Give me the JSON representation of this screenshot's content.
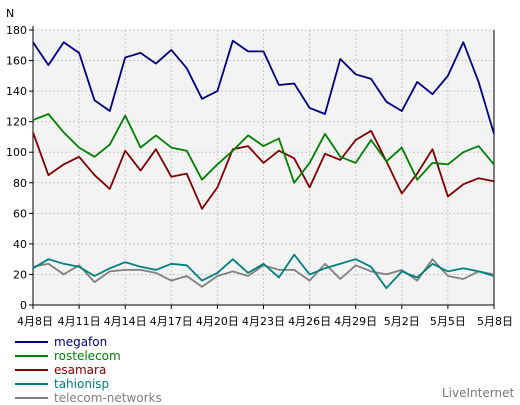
{
  "chart_data": {
    "type": "line",
    "title": "",
    "xlabel": "",
    "ylabel": "N",
    "ylim": [
      0,
      180
    ],
    "yticks": [
      0,
      20,
      40,
      60,
      80,
      100,
      120,
      140,
      160,
      180
    ],
    "grid": true,
    "legend_position": "bottom-left",
    "brand": "LiveInternet",
    "x": [
      "4月8日",
      "4月9日",
      "4月10日",
      "4月11日",
      "4月12日",
      "4月13日",
      "4月14日",
      "4月15日",
      "4月16日",
      "4月17日",
      "4月18日",
      "4月19日",
      "4月20日",
      "4月21日",
      "4月22日",
      "4月23日",
      "4月24日",
      "4月25日",
      "4月26日",
      "4月27日",
      "4月28日",
      "4月29日",
      "4月30日",
      "5月1日",
      "5月2日",
      "5月3日",
      "5月4日",
      "5月5日",
      "5月6日",
      "5月7日",
      "5月8日"
    ],
    "xticks": [
      {
        "label": "4月8日",
        "index": 0
      },
      {
        "label": "4月11日",
        "index": 3
      },
      {
        "label": "4月14日",
        "index": 6
      },
      {
        "label": "4月17日",
        "index": 9
      },
      {
        "label": "4月20日",
        "index": 12
      },
      {
        "label": "4月23日",
        "index": 15
      },
      {
        "label": "4月26日",
        "index": 18
      },
      {
        "label": "4月29日",
        "index": 21
      },
      {
        "label": "5月2日",
        "index": 24
      },
      {
        "label": "5月5日",
        "index": 27
      },
      {
        "label": "5月8日",
        "index": 30
      }
    ],
    "series": [
      {
        "name": "megafon",
        "color": "#000080",
        "values": [
          172,
          157,
          172,
          165,
          134,
          127,
          162,
          165,
          158,
          167,
          155,
          135,
          140,
          173,
          166,
          166,
          144,
          145,
          129,
          125,
          161,
          151,
          148,
          133,
          127,
          146,
          138,
          150,
          172,
          146,
          112
        ]
      },
      {
        "name": "rostelecom",
        "color": "#008000",
        "values": [
          121,
          125,
          113,
          103,
          97,
          105,
          124,
          103,
          111,
          103,
          101,
          82,
          92,
          101,
          111,
          104,
          109,
          80,
          93,
          112,
          97,
          93,
          108,
          94,
          103,
          82,
          93,
          92,
          100,
          104,
          92
        ]
      },
      {
        "name": "esamara",
        "color": "#800000",
        "values": [
          113,
          85,
          92,
          97,
          85,
          76,
          101,
          88,
          102,
          84,
          86,
          63,
          77,
          102,
          104,
          93,
          101,
          96,
          77,
          99,
          95,
          108,
          114,
          94,
          73,
          86,
          102,
          71,
          79,
          83,
          81
        ]
      },
      {
        "name": "tahionisp",
        "color": "#008080",
        "values": [
          24,
          30,
          27,
          25,
          19,
          24,
          28,
          25,
          23,
          27,
          26,
          16,
          21,
          30,
          21,
          27,
          18,
          33,
          20,
          24,
          27,
          30,
          25,
          11,
          22,
          18,
          27,
          22,
          24,
          22,
          19
        ]
      },
      {
        "name": "telecom-networks",
        "color": "#808080",
        "values": [
          25,
          27,
          20,
          26,
          15,
          22,
          23,
          23,
          21,
          16,
          19,
          12,
          19,
          22,
          19,
          26,
          23,
          23,
          16,
          27,
          17,
          26,
          22,
          20,
          23,
          16,
          30,
          19,
          17,
          22,
          20
        ]
      }
    ]
  }
}
